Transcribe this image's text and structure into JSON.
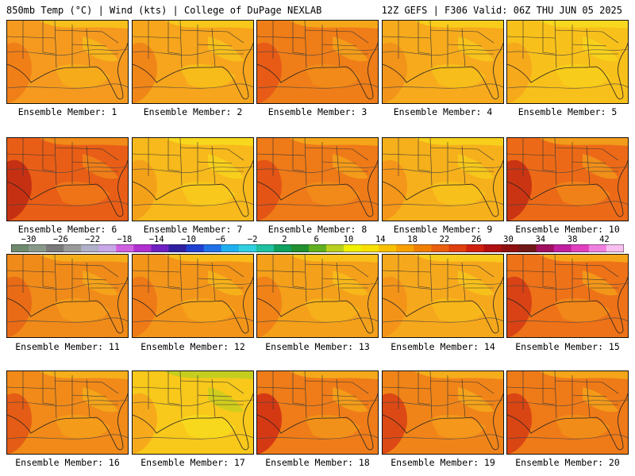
{
  "header": {
    "left_title": "850mb Temp (°C) | Wind (kts) | College of DuPage NEXLAB",
    "right_title": "12Z GEFS | F306 Valid: 06Z THU JUN 05 2025"
  },
  "panels": [
    {
      "label": "Ensemble Member: 1"
    },
    {
      "label": "Ensemble Member: 2"
    },
    {
      "label": "Ensemble Member: 3"
    },
    {
      "label": "Ensemble Member: 4"
    },
    {
      "label": "Ensemble Member: 5"
    },
    {
      "label": "Ensemble Member: 6"
    },
    {
      "label": "Ensemble Member: 7"
    },
    {
      "label": "Ensemble Member: 8"
    },
    {
      "label": "Ensemble Member: 9"
    },
    {
      "label": "Ensemble Member: 10"
    },
    {
      "label": "Ensemble Member: 11"
    },
    {
      "label": "Ensemble Member: 12"
    },
    {
      "label": "Ensemble Member: 13"
    },
    {
      "label": "Ensemble Member: 14"
    },
    {
      "label": "Ensemble Member: 15"
    },
    {
      "label": "Ensemble Member: 16"
    },
    {
      "label": "Ensemble Member: 17"
    },
    {
      "label": "Ensemble Member: 18"
    },
    {
      "label": "Ensemble Member: 19"
    },
    {
      "label": "Ensemble Member: 20"
    }
  ],
  "colorbar": {
    "ticks": [
      "−30",
      "−26",
      "−22",
      "−18",
      "−14",
      "−10",
      "−6",
      "−2",
      "2",
      "6",
      "10",
      "14",
      "18",
      "22",
      "26",
      "30",
      "34",
      "38",
      "42"
    ],
    "colors": [
      "#6f8a6f",
      "#8a9a8a",
      "#7a7a7a",
      "#9a9a9a",
      "#b0b0c8",
      "#c8a8e8",
      "#d060e0",
      "#b030d0",
      "#7020c0",
      "#3020a0",
      "#2040d0",
      "#2070e8",
      "#20b0f0",
      "#30d0e0",
      "#20c0a0",
      "#10a060",
      "#209030",
      "#60b020",
      "#b8d020",
      "#f0f000",
      "#f8e000",
      "#f8c000",
      "#f8a000",
      "#f08000",
      "#e86010",
      "#e04010",
      "#d02010",
      "#b01010",
      "#901010",
      "#701818",
      "#a01060",
      "#c020a0",
      "#e040c0",
      "#f080e0",
      "#f8c0f0"
    ]
  }
}
